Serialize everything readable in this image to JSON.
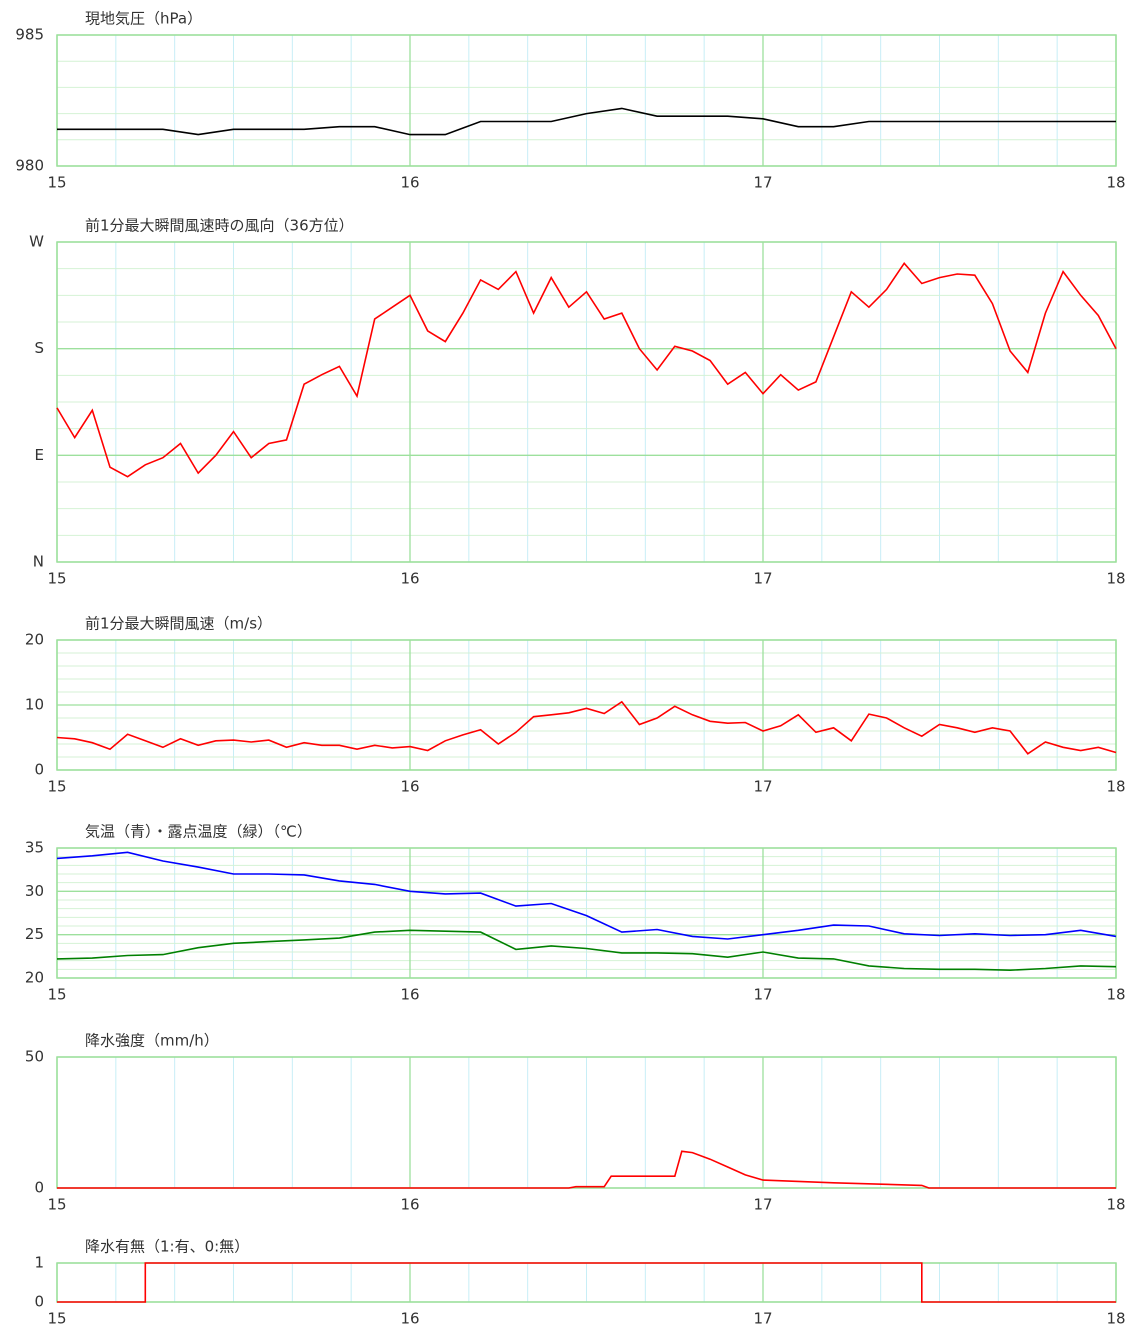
{
  "chart_data": [
    {
      "type": "line",
      "title": "現地気圧（hPa）",
      "x": [
        15,
        15.1,
        15.2,
        15.3,
        15.4,
        15.5,
        15.6,
        15.7,
        15.8,
        15.9,
        16,
        16.1,
        16.2,
        16.3,
        16.4,
        16.5,
        16.6,
        16.7,
        16.8,
        16.9,
        17,
        17.1,
        17.2,
        17.3,
        17.4,
        17.5,
        17.6,
        17.7,
        17.8,
        17.9,
        18
      ],
      "series": [
        {
          "color": "#000000",
          "values": [
            981.4,
            981.4,
            981.4,
            981.4,
            981.2,
            981.4,
            981.4,
            981.4,
            981.5,
            981.5,
            981.2,
            981.2,
            981.7,
            981.7,
            981.7,
            982.0,
            982.2,
            981.9,
            981.9,
            981.9,
            981.8,
            981.5,
            981.5,
            981.7,
            981.7,
            981.7,
            981.7,
            981.7,
            981.7,
            981.7,
            981.7
          ]
        }
      ],
      "xlim": [
        15,
        18
      ],
      "xticks": [
        15,
        16,
        17,
        18
      ],
      "ylim": [
        980,
        985
      ],
      "yticks": [
        980,
        985
      ],
      "grid": true
    },
    {
      "type": "line",
      "title": "前1分最大瞬間風速時の風向（36方位）",
      "x": [
        15,
        15.05,
        15.1,
        15.15,
        15.2,
        15.25,
        15.3,
        15.35,
        15.4,
        15.45,
        15.5,
        15.55,
        15.6,
        15.65,
        15.7,
        15.75,
        15.8,
        15.85,
        15.9,
        15.95,
        16,
        16.05,
        16.1,
        16.15,
        16.2,
        16.25,
        16.3,
        16.35,
        16.4,
        16.45,
        16.5,
        16.55,
        16.6,
        16.65,
        16.7,
        16.75,
        16.8,
        16.85,
        16.9,
        16.95,
        17,
        17.05,
        17.1,
        17.15,
        17.2,
        17.25,
        17.3,
        17.35,
        17.4,
        17.45,
        17.5,
        17.55,
        17.6,
        17.65,
        17.7,
        17.75,
        17.8,
        17.85,
        17.9,
        17.95,
        18
      ],
      "series": [
        {
          "color": "#ff0000",
          "values": [
            130,
            105,
            128,
            80,
            72,
            82,
            88,
            100,
            75,
            90,
            110,
            88,
            100,
            103,
            150,
            158,
            165,
            140,
            205,
            215,
            225,
            195,
            186,
            210,
            238,
            230,
            245,
            210,
            240,
            215,
            228,
            205,
            210,
            180,
            162,
            182,
            178,
            170,
            150,
            160,
            142,
            158,
            145,
            152,
            190,
            228,
            215,
            230,
            252,
            235,
            240,
            243,
            242,
            218,
            178,
            160,
            210,
            245,
            225,
            208,
            180
          ]
        }
      ],
      "xlim": [
        15,
        18
      ],
      "xticks": [
        15,
        16,
        17,
        18
      ],
      "ylim": [
        0,
        270
      ],
      "yticks": [
        {
          "value": 0,
          "label": "N"
        },
        {
          "value": 90,
          "label": "E"
        },
        {
          "value": 180,
          "label": "S"
        },
        {
          "value": 270,
          "label": "W"
        }
      ],
      "grid": true
    },
    {
      "type": "line",
      "title": "前1分最大瞬間風速（m/s）",
      "x": [
        15,
        15.05,
        15.1,
        15.15,
        15.2,
        15.25,
        15.3,
        15.35,
        15.4,
        15.45,
        15.5,
        15.55,
        15.6,
        15.65,
        15.7,
        15.75,
        15.8,
        15.85,
        15.9,
        15.95,
        16,
        16.05,
        16.1,
        16.15,
        16.2,
        16.25,
        16.3,
        16.35,
        16.4,
        16.45,
        16.5,
        16.55,
        16.6,
        16.65,
        16.7,
        16.75,
        16.8,
        16.85,
        16.9,
        16.95,
        17,
        17.05,
        17.1,
        17.15,
        17.2,
        17.25,
        17.3,
        17.35,
        17.4,
        17.45,
        17.5,
        17.55,
        17.6,
        17.65,
        17.7,
        17.75,
        17.8,
        17.85,
        17.9,
        17.95,
        18
      ],
      "series": [
        {
          "color": "#ff0000",
          "values": [
            5,
            4.8,
            4.2,
            3.2,
            5.5,
            4.5,
            3.5,
            4.8,
            3.8,
            4.5,
            4.6,
            4.3,
            4.6,
            3.5,
            4.2,
            3.8,
            3.8,
            3.2,
            3.8,
            3.4,
            3.6,
            3.0,
            4.5,
            5.4,
            6.2,
            4.0,
            5.8,
            8.2,
            8.5,
            8.8,
            9.5,
            8.7,
            10.5,
            7.0,
            8.0,
            9.8,
            8.5,
            7.5,
            7.2,
            7.3,
            6.0,
            6.8,
            8.5,
            5.8,
            6.5,
            4.5,
            8.6,
            8.0,
            6.5,
            5.2,
            7.0,
            6.5,
            5.8,
            6.5,
            6.0,
            2.5,
            4.3,
            3.5,
            3.0,
            3.5,
            2.7
          ]
        }
      ],
      "xlim": [
        15,
        18
      ],
      "xticks": [
        15,
        16,
        17,
        18
      ],
      "ylim": [
        0,
        20
      ],
      "yticks": [
        0,
        10,
        20
      ],
      "grid": true
    },
    {
      "type": "line",
      "title": "気温（青）・露点温度（緑）（℃）",
      "x": [
        15,
        15.1,
        15.2,
        15.3,
        15.4,
        15.5,
        15.6,
        15.7,
        15.8,
        15.9,
        16,
        16.1,
        16.2,
        16.3,
        16.4,
        16.5,
        16.6,
        16.7,
        16.8,
        16.9,
        17,
        17.1,
        17.2,
        17.3,
        17.4,
        17.5,
        17.6,
        17.7,
        17.8,
        17.9,
        18
      ],
      "series": [
        {
          "color": "#0000ff",
          "values": [
            33.8,
            34.1,
            34.5,
            33.5,
            32.8,
            32,
            32,
            31.9,
            31.2,
            30.8,
            30.0,
            29.7,
            29.8,
            28.3,
            28.6,
            27.2,
            25.3,
            25.6,
            24.8,
            24.5,
            25.0,
            25.5,
            26.1,
            26.0,
            25.1,
            24.9,
            25.1,
            24.9,
            25.0,
            25.5,
            24.8
          ]
        },
        {
          "color": "#008000",
          "values": [
            22.2,
            22.3,
            22.6,
            22.7,
            23.5,
            24.0,
            24.2,
            24.4,
            24.6,
            25.3,
            25.5,
            25.4,
            25.3,
            23.3,
            23.7,
            23.4,
            22.9,
            22.9,
            22.8,
            22.4,
            23.0,
            22.3,
            22.2,
            21.4,
            21.1,
            21.0,
            21.0,
            20.9,
            21.1,
            21.4,
            21.3
          ]
        }
      ],
      "xlim": [
        15,
        18
      ],
      "xticks": [
        15,
        16,
        17,
        18
      ],
      "ylim": [
        20,
        35
      ],
      "yticks": [
        20,
        25,
        30,
        35
      ],
      "grid": true
    },
    {
      "type": "line",
      "title": "降水強度（mm/h）",
      "x": [
        15,
        16.45,
        16.47,
        16.55,
        16.57,
        16.75,
        16.77,
        16.8,
        16.85,
        16.9,
        16.95,
        17,
        17.2,
        17.45,
        17.47,
        18
      ],
      "series": [
        {
          "color": "#ff0000",
          "values": [
            0,
            0,
            0.5,
            0.5,
            4.5,
            4.5,
            14,
            13.5,
            11,
            8,
            5,
            3,
            2,
            1,
            0,
            0
          ]
        }
      ],
      "xlim": [
        15,
        18
      ],
      "xticks": [
        15,
        16,
        17,
        18
      ],
      "ylim": [
        0,
        50
      ],
      "yticks": [
        0,
        50
      ],
      "grid": true
    },
    {
      "type": "line",
      "title": "降水有無（1:有、0:無）",
      "x": [
        15,
        15.25,
        15.25,
        17.45,
        17.45,
        18
      ],
      "series": [
        {
          "color": "#ff0000",
          "values": [
            0,
            0,
            1,
            1,
            0,
            0
          ]
        }
      ],
      "xlim": [
        15,
        18
      ],
      "xticks": [
        15,
        16,
        17,
        18
      ],
      "ylim": [
        0,
        1
      ],
      "yticks": [
        0,
        1
      ],
      "grid": true
    }
  ]
}
